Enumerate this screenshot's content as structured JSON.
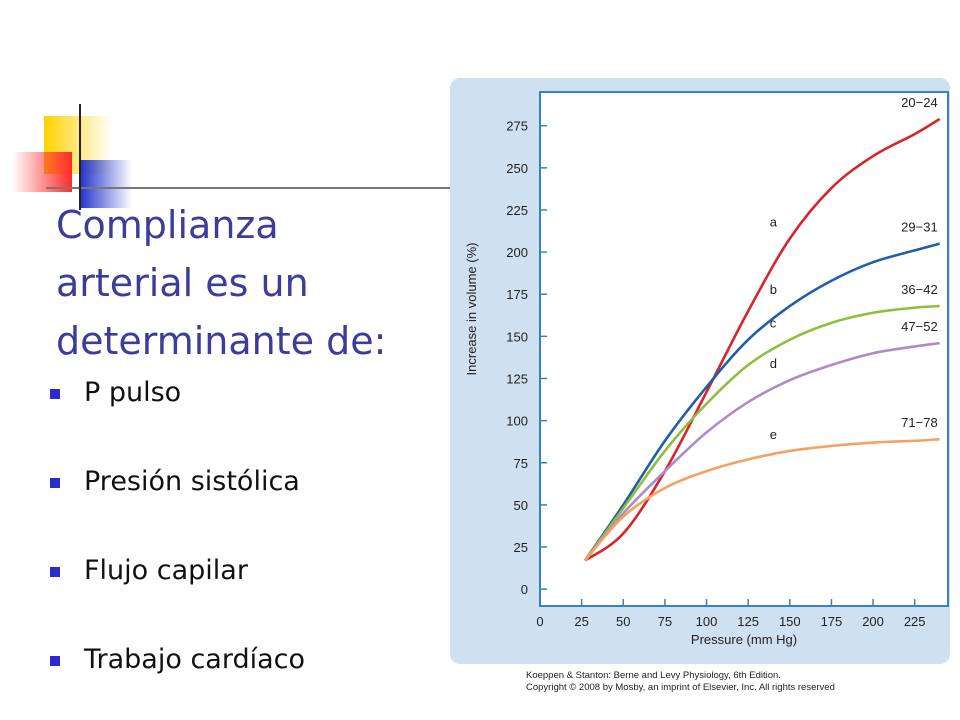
{
  "slide": {
    "title_lines": [
      "Complianza",
      "arterial es un",
      "determinante de:"
    ],
    "bullets": [
      "P pulso",
      "Presión  sistólica",
      "Flujo capilar",
      "Trabajo cardíaco"
    ],
    "credit_lines": [
      "Koeppen & Stanton: Berne and Levy Physiology, 6th Edition.",
      "Copyright © 2008 by Mosby, an imprint of Elsevier, Inc. All rights reserved"
    ]
  },
  "chart_data": {
    "type": "line",
    "x_label": "Pressure (mm Hg)",
    "y_label": "Increase in volume (%)",
    "x": [
      27,
      50,
      75,
      100,
      125,
      150,
      175,
      200,
      225,
      240
    ],
    "series": [
      {
        "name": "a",
        "label": "20−24",
        "color": "#d8232a",
        "values": [
          17,
          33,
          70,
          117,
          165,
          208,
          238,
          257,
          270,
          279
        ]
      },
      {
        "name": "b",
        "label": "29−31",
        "color": "#1f5fa8",
        "values": [
          17,
          50,
          88,
          120,
          148,
          168,
          183,
          194,
          201,
          205
        ]
      },
      {
        "name": "c",
        "label": "36−42",
        "color": "#8cbf3f",
        "values": [
          17,
          48,
          82,
          110,
          133,
          148,
          158,
          164,
          167,
          168
        ]
      },
      {
        "name": "d",
        "label": "47−52",
        "color": "#b08ac6",
        "values": [
          17,
          45,
          70,
          93,
          111,
          124,
          133,
          140,
          144,
          146
        ]
      },
      {
        "name": "e",
        "label": "71−78",
        "color": "#f4a261",
        "values": [
          17,
          43,
          60,
          70,
          77,
          82,
          85,
          87,
          88,
          89
        ]
      }
    ],
    "xlim": [
      0,
      245
    ],
    "ylim": [
      -10,
      295
    ],
    "xticks": [
      0,
      25,
      50,
      75,
      100,
      125,
      150,
      175,
      200,
      225
    ],
    "yticks": [
      0,
      25,
      50,
      75,
      100,
      125,
      150,
      175,
      200,
      225,
      250,
      275
    ]
  }
}
